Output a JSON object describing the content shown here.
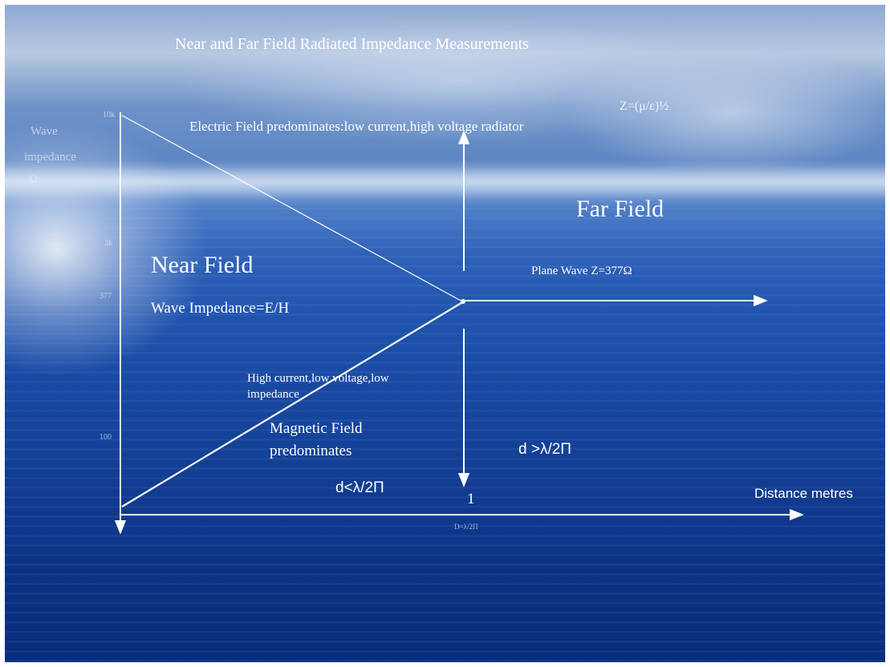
{
  "slide": {
    "title": "Near and Far Field Radiated Impedance Measurements",
    "formula": "Z=(μ/ε)½",
    "electric_note": "Electric Field predominates:low current,high voltage radiator",
    "y_axis_label": [
      "Wave",
      "impedance",
      "Ω"
    ],
    "y_ticks": [
      "10k",
      "3k",
      "377",
      "100"
    ],
    "far_field": "Far Field",
    "near_field": "Near Field",
    "wave_impedance": "Wave Impedance=E/H",
    "plane_wave": "Plane Wave Z=377Ω",
    "magnetic_note_line1": "High current,low voltage,low",
    "magnetic_note_line2": "impedance",
    "magnetic_field_line1": "Magnetic Field",
    "magnetic_field_line2": "predominates",
    "far_condition": "d >λ/2Π",
    "near_condition": "d<λ/2Π",
    "boundary_value": "1",
    "x_axis_label": "Distance  metres",
    "boundary_label": "D=λ/2Π"
  },
  "colors": {
    "line": "#ffffff",
    "sky_top": "#8aa6d0",
    "sea_deep": "#0a2c7b"
  }
}
